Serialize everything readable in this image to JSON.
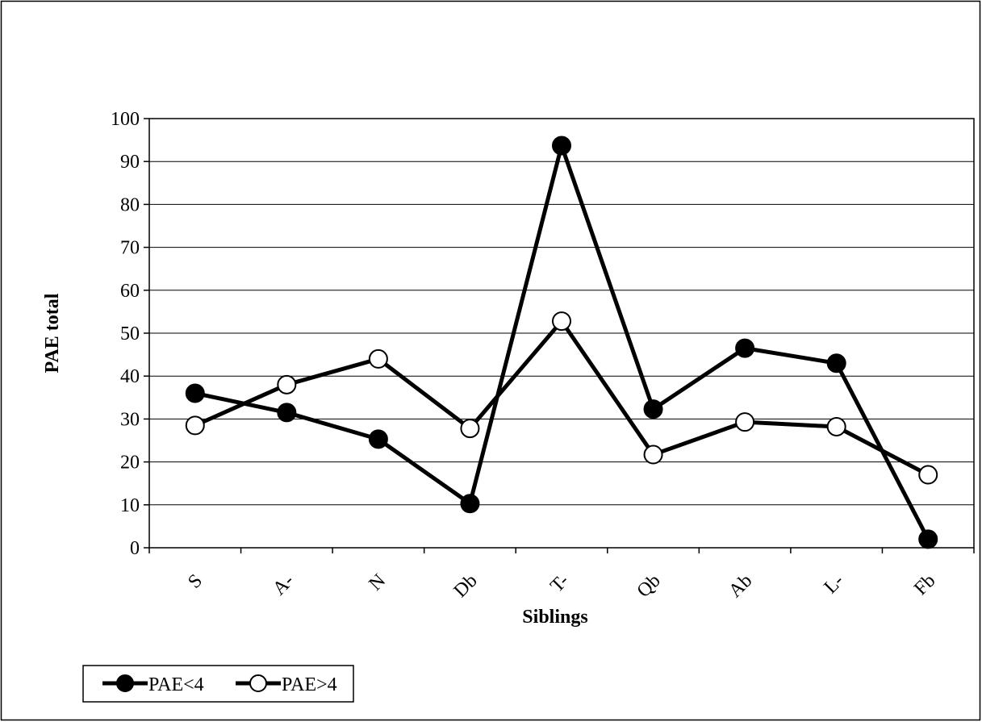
{
  "chart_data": {
    "type": "line",
    "categories": [
      "S",
      "A-",
      "N",
      "Db",
      "T-",
      "Qb",
      "Ab",
      "L-",
      "Fb"
    ],
    "series": [
      {
        "name": "PAE<4",
        "values": [
          36,
          31.5,
          25.3,
          10.3,
          93.7,
          32.3,
          46.5,
          43,
          2
        ],
        "marker": "filled-circle",
        "color": "#000000"
      },
      {
        "name": "PAE>4",
        "values": [
          28.5,
          38,
          44,
          27.8,
          52.8,
          21.7,
          29.3,
          28.2,
          17
        ],
        "marker": "open-circle",
        "color": "#000000"
      }
    ],
    "xlabel": "Siblings",
    "ylabel": "PAE total",
    "ylim": [
      0,
      100
    ],
    "yticks": [
      0,
      10,
      20,
      30,
      40,
      50,
      60,
      70,
      80,
      90,
      100
    ],
    "grid": "horizontal",
    "legend": "bottom-left"
  }
}
